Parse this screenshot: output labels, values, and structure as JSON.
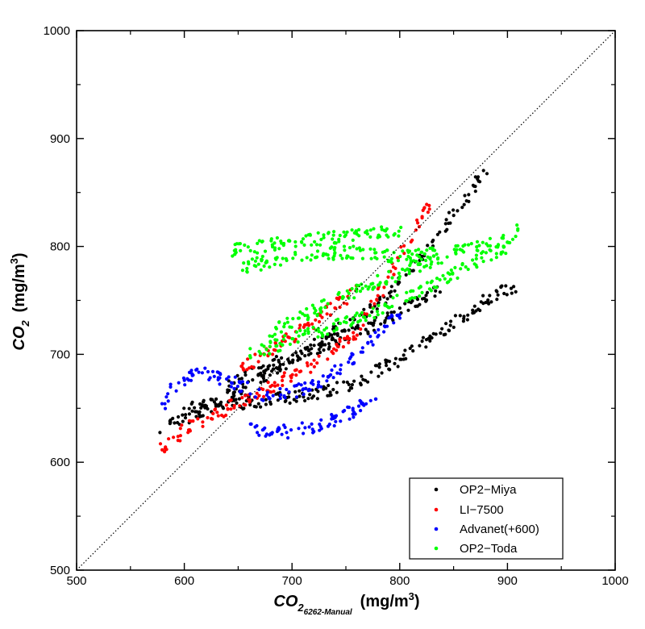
{
  "chart_data": {
    "type": "scatter",
    "xlabel": {
      "base": "CO",
      "sub": "2",
      "subsub": "6262-Manual",
      "units_prefix": "(mg/m",
      "units_sup": "3",
      "units_suffix": ")"
    },
    "ylabel": {
      "base": "CO",
      "sub": "2",
      "units_prefix": "(mg/m",
      "units_sup": "3",
      "units_suffix": ")"
    },
    "xlim": [
      500,
      1000
    ],
    "ylim": [
      500,
      1000
    ],
    "x_ticks": [
      "500",
      "600",
      "700",
      "800",
      "900",
      "1000"
    ],
    "y_ticks": [
      "500",
      "600",
      "700",
      "800",
      "900",
      "1000"
    ],
    "grid": false,
    "reference_line": {
      "type": "1:1",
      "style": "dotted",
      "color": "#000000"
    },
    "legend_position": "bottom-right",
    "series": [
      {
        "name": "OP2−Miya",
        "color": "#000000",
        "trends": [
          {
            "x": [
              578,
              620,
              660,
              700,
              740,
              780,
              820,
              850,
              880
            ],
            "y": [
              630,
              650,
              670,
              695,
              720,
              745,
              790,
              830,
              870
            ]
          },
          {
            "x": [
              600,
              650,
              700,
              750,
              800,
              850,
              880,
              910
            ],
            "y": [
              650,
              655,
              660,
              670,
              695,
              730,
              750,
              765
            ]
          },
          {
            "x": [
              640,
              680,
              720,
              760,
              800,
              840
            ],
            "y": [
              670,
              690,
              705,
              720,
              740,
              760
            ]
          }
        ]
      },
      {
        "name": "LI−7500",
        "color": "#ff0000",
        "trends": [
          {
            "x": [
              578,
              600,
              640,
              680,
              720,
              760,
              800,
              830
            ],
            "y": [
              612,
              630,
              650,
              670,
              690,
              720,
              790,
              845
            ]
          },
          {
            "x": [
              650,
              690,
              720,
              760
            ],
            "y": [
              685,
              710,
              730,
              760
            ]
          }
        ]
      },
      {
        "name": "Advanet(+600)",
        "color": "#0000ff",
        "trends": [
          {
            "x": [
              578,
              590,
              610,
              640,
              680,
              720,
              760,
              800
            ],
            "y": [
              650,
              670,
              685,
              675,
              660,
              670,
              700,
              740
            ]
          },
          {
            "x": [
              660,
              700,
              740,
              780
            ],
            "y": [
              630,
              628,
              640,
              660
            ]
          }
        ]
      },
      {
        "name": "OP2−Toda",
        "color": "#00ff00",
        "trends": [
          {
            "x": [
              650,
              700,
              750,
              800,
              850,
              900,
              910
            ],
            "y": [
              780,
              790,
              795,
              790,
              795,
              805,
              815
            ]
          },
          {
            "x": [
              640,
              700,
              760,
              800
            ],
            "y": [
              795,
              805,
              810,
              815
            ]
          },
          {
            "x": [
              660,
              720,
              780,
              820,
              860,
              900
            ],
            "y": [
              700,
              720,
              740,
              760,
              780,
              800
            ]
          },
          {
            "x": [
              680,
              720,
              760,
              800,
              840
            ],
            "y": [
              720,
              740,
              760,
              775,
              790
            ]
          }
        ]
      }
    ]
  }
}
